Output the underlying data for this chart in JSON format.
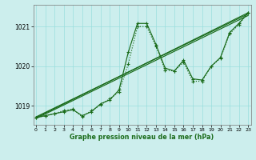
{
  "x": [
    0,
    1,
    2,
    3,
    4,
    5,
    6,
    7,
    8,
    9,
    10,
    11,
    12,
    13,
    14,
    15,
    16,
    17,
    18,
    19,
    20,
    21,
    22,
    23
  ],
  "wavy_line": [
    1018.7,
    1018.75,
    1018.8,
    1018.85,
    1018.9,
    1018.75,
    1018.85,
    1019.05,
    1019.15,
    1019.4,
    1020.35,
    1021.08,
    1021.08,
    1020.55,
    1019.95,
    1019.88,
    1020.15,
    1019.68,
    1019.65,
    1020.0,
    1020.22,
    1020.85,
    1021.08,
    1021.35
  ],
  "zigzag_line": [
    1018.7,
    1018.75,
    1018.8,
    1018.88,
    1018.92,
    1018.72,
    1018.88,
    1019.02,
    1019.18,
    1019.35,
    1020.05,
    1021.0,
    1021.0,
    1020.5,
    1019.9,
    1019.88,
    1020.1,
    1019.62,
    1019.62,
    1020.0,
    1020.2,
    1020.82,
    1021.05,
    1021.35
  ],
  "trend1_x": [
    0,
    23
  ],
  "trend1_y": [
    1018.7,
    1021.35
  ],
  "trend2_x": [
    0,
    23
  ],
  "trend2_y": [
    1018.72,
    1021.32
  ],
  "trend3_x": [
    0,
    23
  ],
  "trend3_y": [
    1018.68,
    1021.28
  ],
  "bg_color": "#cceeed",
  "grid_color": "#99dddd",
  "line_color": "#1a6b1a",
  "title": "Graphe pression niveau de la mer (hPa)",
  "yticks": [
    1019,
    1020,
    1021
  ],
  "ylim": [
    1018.52,
    1021.55
  ],
  "xlim": [
    -0.3,
    23.3
  ]
}
